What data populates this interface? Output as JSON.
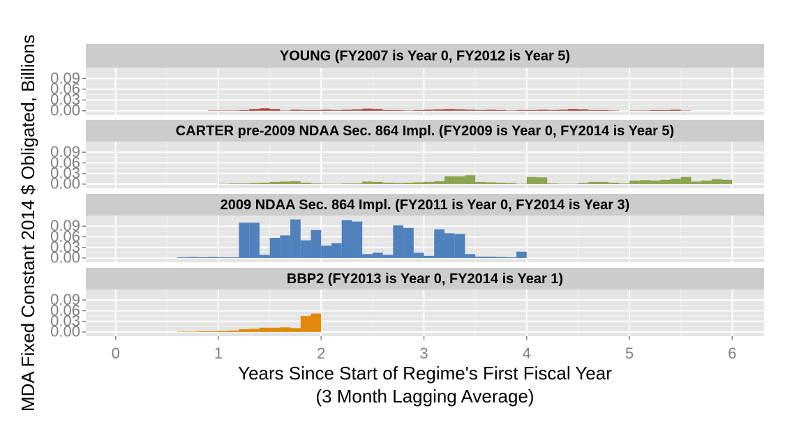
{
  "chart_data": {
    "type": "facet",
    "y_label": "MDA Fixed Constant 2014 $ Obligated, Billions",
    "x_label": [
      "Years Since Start of Regime's First Fiscal Year",
      "(3 Month Lagging Average)"
    ],
    "xlim": [
      -0.29,
      6.31
    ],
    "xticks": [
      0,
      1,
      2,
      3,
      4,
      5,
      6
    ],
    "ylim": [
      -0.012,
      0.12
    ],
    "yticks": [
      {
        "value": 0,
        "label": "0.00"
      },
      {
        "value": 0.03,
        "label": "0.03"
      },
      {
        "value": 0.06,
        "label": "0.06"
      },
      {
        "value": 0.09,
        "label": "0.09"
      }
    ],
    "grid": true,
    "panels": [
      {
        "title": "YOUNG (FY2007 is Year 0, FY2012 is Year 5)",
        "color": "#b5473f",
        "x": [
          0.95,
          1.05,
          1.15,
          1.25,
          1.35,
          1.45,
          1.55,
          1.65,
          1.75,
          1.85,
          1.95,
          2.05,
          2.15,
          2.25,
          2.35,
          2.45,
          2.55,
          2.65,
          2.75,
          2.85,
          2.95,
          3.05,
          3.15,
          3.25,
          3.35,
          3.45,
          3.55,
          3.65,
          3.75,
          3.85,
          3.95,
          4.05,
          4.15,
          4.25,
          4.35,
          4.45,
          4.55,
          4.65,
          4.75,
          4.85,
          4.95,
          5.05,
          5.15,
          5.25,
          5.35,
          5.45,
          5.55
        ],
        "values": [
          0.001,
          0.001,
          0.001,
          0.002,
          0.005,
          0.007,
          0.005,
          0.001,
          0.003,
          0.002,
          0.002,
          0.003,
          0.002,
          0.003,
          0.004,
          0.006,
          0.005,
          0.002,
          0.002,
          0.001,
          0.002,
          0.003,
          0.004,
          0.005,
          0.004,
          0.003,
          0.002,
          0.003,
          0.002,
          0.001,
          0.002,
          0.002,
          0.003,
          0.002,
          0.003,
          0.005,
          0.004,
          0.002,
          0.002,
          0.001,
          0,
          0.001,
          0.001,
          0.002,
          0.002,
          0.003,
          0.001
        ]
      },
      {
        "title": "CARTER pre-2009 NDAA Sec. 864 Impl. (FY2009 is Year 0, FY2014 is Year 5)",
        "color": "#8aa54d",
        "x": [
          1.05,
          1.15,
          1.25,
          1.35,
          1.45,
          1.55,
          1.65,
          1.75,
          1.85,
          1.95,
          2.05,
          2.15,
          2.25,
          2.35,
          2.45,
          2.55,
          2.65,
          2.75,
          2.85,
          2.95,
          3.05,
          3.15,
          3.25,
          3.35,
          3.45,
          3.55,
          3.65,
          3.75,
          3.85,
          3.95,
          4.05,
          4.15,
          4.25,
          4.35,
          4.45,
          4.55,
          4.65,
          4.75,
          4.85,
          4.95,
          5.05,
          5.15,
          5.25,
          5.35,
          5.45,
          5.55,
          5.65,
          5.75,
          5.85,
          5.95
        ],
        "values": [
          0.001,
          0.002,
          0.002,
          0.003,
          0.004,
          0.006,
          0.007,
          0.008,
          0.004,
          0.002,
          0.001,
          0.001,
          0.002,
          0.002,
          0.007,
          0.006,
          0.004,
          0.003,
          0.004,
          0.005,
          0.006,
          0.008,
          0.022,
          0.022,
          0.025,
          0.006,
          0.005,
          0.004,
          0.003,
          0.001,
          0.02,
          0.019,
          0.002,
          0.001,
          0.001,
          0.003,
          0.006,
          0.006,
          0.004,
          0.002,
          0.01,
          0.011,
          0.01,
          0.012,
          0.015,
          0.02,
          0.007,
          0.01,
          0.014,
          0.012
        ]
      },
      {
        "title": "2009 NDAA Sec. 864 Impl. (FY2011 is Year 0, FY2014 is Year 3)",
        "color": "#4f81bd",
        "x": [
          0.65,
          0.75,
          0.85,
          0.95,
          1.05,
          1.15,
          1.25,
          1.35,
          1.45,
          1.55,
          1.65,
          1.75,
          1.85,
          1.95,
          2.05,
          2.15,
          2.25,
          2.35,
          2.45,
          2.55,
          2.65,
          2.75,
          2.85,
          2.95,
          3.05,
          3.15,
          3.25,
          3.35,
          3.45,
          3.55,
          3.65,
          3.75,
          3.85,
          3.95
        ],
        "values": [
          0.002,
          0.003,
          0.002,
          0.003,
          0.002,
          0.002,
          0.1,
          0.1,
          0.009,
          0.057,
          0.064,
          0.109,
          0.05,
          0.079,
          0.035,
          0.042,
          0.107,
          0.103,
          0.011,
          0.015,
          0.009,
          0.092,
          0.085,
          0.015,
          0.006,
          0.081,
          0.07,
          0.068,
          0.011,
          0.004,
          0.004,
          0.003,
          0.002,
          0.018
        ]
      },
      {
        "title": "BBP2 (FY2013 is Year 0, FY2014 is Year 1)",
        "color": "#e08a0b",
        "x": [
          0.65,
          0.75,
          0.85,
          0.95,
          1.05,
          1.15,
          1.25,
          1.35,
          1.45,
          1.55,
          1.65,
          1.75,
          1.85,
          1.95
        ],
        "values": [
          0.001,
          0.001,
          0.002,
          0.002,
          0.003,
          0.004,
          0.008,
          0.009,
          0.012,
          0.012,
          0.013,
          0.011,
          0.045,
          0.052
        ]
      }
    ]
  }
}
